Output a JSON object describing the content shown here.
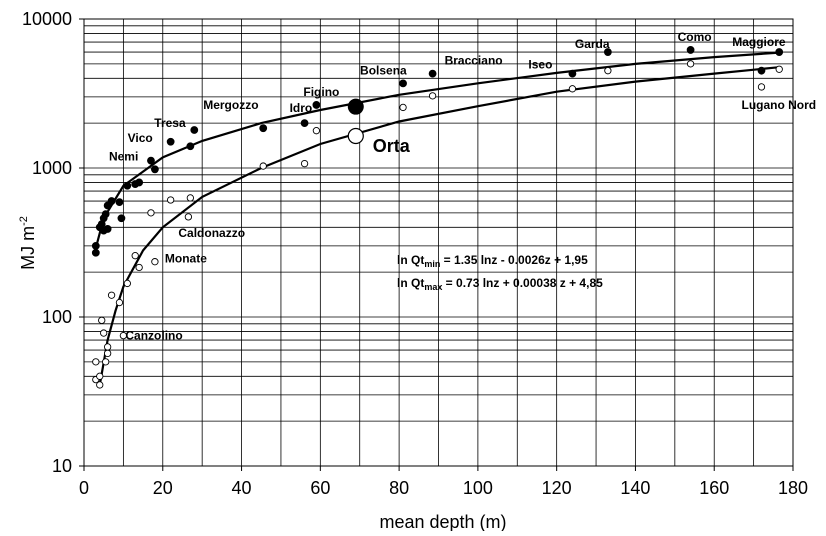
{
  "chart_data": {
    "type": "scatter",
    "title": "",
    "xlabel": "mean depth (m)",
    "ylabel_main": "MJ m",
    "ylabel_sup": "-2",
    "xlim": [
      0,
      180
    ],
    "ylim": [
      10,
      10000
    ],
    "yscale": "log",
    "grid": true,
    "x_ticks": [
      0,
      20,
      40,
      60,
      80,
      100,
      120,
      140,
      160,
      180
    ],
    "y_ticks": [
      10,
      100,
      1000,
      10000
    ],
    "y_tick_labels": [
      "10",
      "100",
      "1000",
      "10000"
    ],
    "series": [
      {
        "marker": "filled-circle",
        "color": "#000000",
        "points": [
          [
            3,
            270
          ],
          [
            3,
            300
          ],
          [
            4,
            400
          ],
          [
            4.5,
            420
          ],
          [
            5,
            460
          ],
          [
            5.5,
            490
          ],
          [
            6,
            390
          ],
          [
            5,
            380
          ],
          [
            6,
            560
          ],
          [
            7,
            600
          ],
          [
            9,
            590
          ],
          [
            9.5,
            460
          ],
          [
            11,
            760
          ],
          [
            13,
            780
          ],
          [
            14,
            800
          ],
          [
            17,
            1120
          ],
          [
            18,
            980
          ],
          [
            22,
            1500
          ],
          [
            27,
            1400
          ],
          [
            28,
            1800
          ],
          [
            45.5,
            1850
          ],
          [
            56,
            2000
          ],
          [
            59,
            2650
          ],
          [
            81,
            3700
          ],
          [
            88.5,
            4300
          ],
          [
            124,
            4300
          ],
          [
            133,
            6000
          ],
          [
            154,
            6200
          ],
          [
            172,
            4500
          ],
          [
            176.5,
            6000
          ]
        ]
      },
      {
        "marker": "open-circle",
        "color": "#000000",
        "points": [
          [
            3,
            38
          ],
          [
            3,
            50
          ],
          [
            4,
            35
          ],
          [
            4,
            40
          ],
          [
            4.5,
            95
          ],
          [
            5,
            78
          ],
          [
            5.5,
            50
          ],
          [
            6,
            57
          ],
          [
            6,
            63
          ],
          [
            7,
            140
          ],
          [
            9,
            125
          ],
          [
            10,
            75
          ],
          [
            11,
            168
          ],
          [
            13,
            258
          ],
          [
            14,
            215
          ],
          [
            17,
            500
          ],
          [
            18,
            235
          ],
          [
            22,
            610
          ],
          [
            26.5,
            470
          ],
          [
            27,
            630
          ],
          [
            45.5,
            1030
          ],
          [
            56,
            1070
          ],
          [
            59,
            1780
          ],
          [
            81,
            2550
          ],
          [
            88.5,
            3050
          ],
          [
            124,
            3400
          ],
          [
            133,
            4500
          ],
          [
            154,
            5000
          ],
          [
            172,
            3500
          ],
          [
            176.5,
            4600
          ]
        ]
      },
      {
        "marker": "large-filled-circle",
        "color": "#000000",
        "points": [
          [
            69,
            2580
          ]
        ]
      },
      {
        "marker": "large-open-circle",
        "color": "#000000",
        "points": [
          [
            69,
            1640
          ]
        ]
      }
    ],
    "curves": [
      {
        "name": "max",
        "points": [
          [
            3,
            290
          ],
          [
            5,
            460
          ],
          [
            10,
            760
          ],
          [
            20,
            1180
          ],
          [
            30,
            1520
          ],
          [
            45,
            2000
          ],
          [
            60,
            2450
          ],
          [
            80,
            3100
          ],
          [
            100,
            3700
          ],
          [
            120,
            4350
          ],
          [
            140,
            5000
          ],
          [
            160,
            5550
          ],
          [
            176.5,
            5950
          ]
        ]
      },
      {
        "name": "min",
        "points": [
          [
            4,
            35
          ],
          [
            6,
            70
          ],
          [
            8,
            110
          ],
          [
            10,
            160
          ],
          [
            15,
            280
          ],
          [
            20,
            400
          ],
          [
            30,
            640
          ],
          [
            45,
            1000
          ],
          [
            60,
            1450
          ],
          [
            80,
            2050
          ],
          [
            100,
            2600
          ],
          [
            120,
            3250
          ],
          [
            140,
            3800
          ],
          [
            160,
            4300
          ],
          [
            176.5,
            4750
          ]
        ]
      }
    ],
    "labels": [
      {
        "text": "Maggiore",
        "x": 176.5,
        "y": 6000
      },
      {
        "text": "Como",
        "x": 154,
        "y": 6200
      },
      {
        "text": "Garda",
        "x": 133,
        "y": 6000
      },
      {
        "text": "Iseo",
        "x": 124,
        "y": 4300
      },
      {
        "text": "Bracciano",
        "x": 88.5,
        "y": 4300
      },
      {
        "text": "Bolsena",
        "x": 81,
        "y": 3700
      },
      {
        "text": "Figino",
        "x": 59,
        "y": 2650
      },
      {
        "text": "Idro",
        "x": 56,
        "y": 2000
      },
      {
        "text": "Mergozzo",
        "x": 45.5,
        "y": 1850
      },
      {
        "text": "Tresa",
        "x": 28,
        "y": 1800
      },
      {
        "text": "Vico",
        "x": 22,
        "y": 1500
      },
      {
        "text": "Nemi",
        "x": 17,
        "y": 1120
      },
      {
        "text": "Lugano Nord",
        "x": 172,
        "y": 3500
      },
      {
        "text": "Orta",
        "x": 69,
        "y": 1640
      },
      {
        "text": "Caldonazzo",
        "x": 26.5,
        "y": 470
      },
      {
        "text": "Monate",
        "x": 18,
        "y": 235
      },
      {
        "text": "Canzolino",
        "x": 10,
        "y": 75
      }
    ],
    "equations": [
      {
        "pre": "ln Qt",
        "sub": "min",
        "post": " = 1.35 lnz - 0.0026z + 1,95"
      },
      {
        "pre": "ln Qt",
        "sub": "max",
        "post": " = 0.73 lnz + 0.00038 z + 4,85"
      }
    ]
  }
}
